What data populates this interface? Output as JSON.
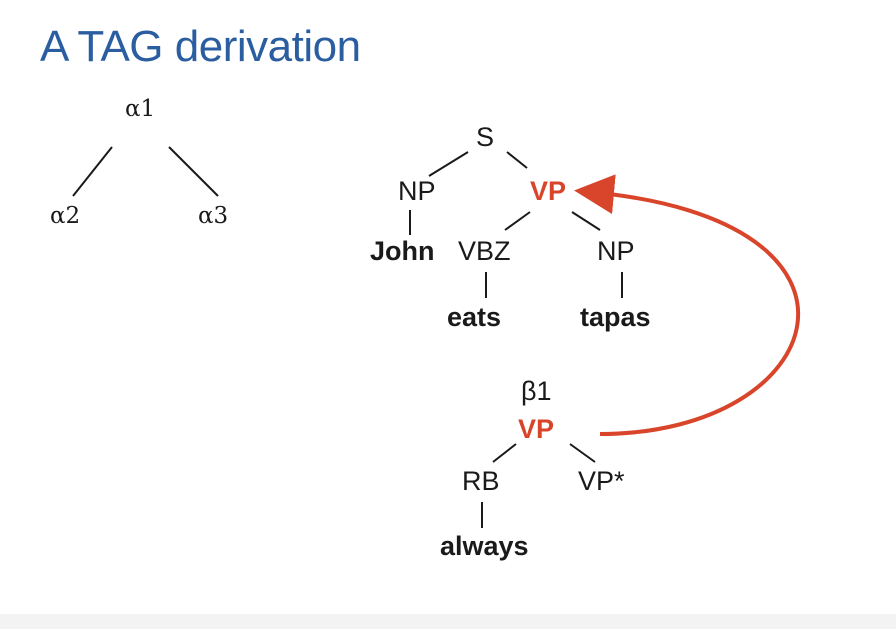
{
  "slide": {
    "title": "A TAG derivation",
    "derivation_tree": {
      "root": "α1",
      "children": [
        "α2",
        "α3"
      ]
    },
    "initial_tree": {
      "s": "S",
      "np_subj": "NP",
      "vp": "VP",
      "john": "John",
      "vbz": "VBZ",
      "np_obj": "NP",
      "eats": "eats",
      "tapas": "tapas"
    },
    "auxiliary_tree": {
      "name": "β1",
      "vp": "VP",
      "rb": "RB",
      "vp_foot": "VP*",
      "always": "always"
    },
    "colors": {
      "title": "#2a5ea0",
      "highlight": "#d9452b",
      "text": "#1a1a1a"
    }
  }
}
